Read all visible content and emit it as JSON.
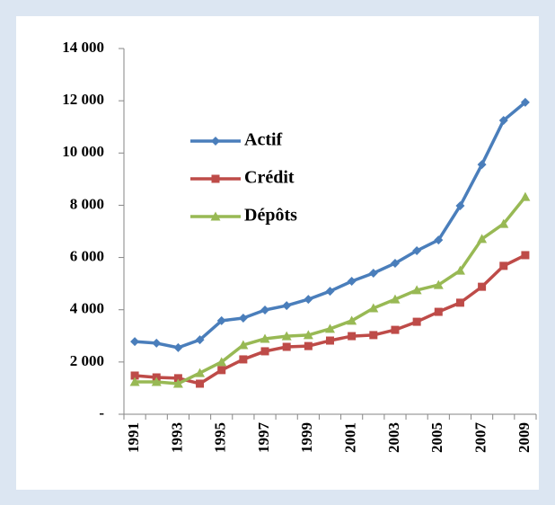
{
  "chart_data": {
    "type": "line",
    "categories": [
      1991,
      null,
      1993,
      null,
      1995,
      null,
      1997,
      null,
      1999,
      null,
      2001,
      null,
      2003,
      null,
      2005,
      null,
      2007,
      null,
      2009
    ],
    "series": [
      {
        "name": "Actif",
        "color": "#4a7ebb",
        "marker": "diamond",
        "values": [
          2780,
          2720,
          2550,
          2850,
          3580,
          3680,
          3990,
          4160,
          4400,
          4710,
          5090,
          5400,
          5780,
          6260,
          6670,
          7980,
          9560,
          11250,
          11940
        ]
      },
      {
        "name": "Crédit",
        "color": "#be4b48",
        "marker": "square",
        "values": [
          1480,
          1410,
          1380,
          1170,
          1690,
          2100,
          2410,
          2580,
          2610,
          2820,
          2990,
          3030,
          3230,
          3540,
          3920,
          4270,
          4880,
          5680,
          6090
        ]
      },
      {
        "name": "Dépôts",
        "color": "#98b954",
        "marker": "triangle",
        "values": [
          1240,
          1240,
          1170,
          1580,
          2000,
          2650,
          2890,
          2990,
          3030,
          3270,
          3580,
          4060,
          4400,
          4750,
          4950,
          5500,
          6710,
          7290,
          8320
        ]
      }
    ],
    "ylim": [
      0,
      14000
    ],
    "yticks": [
      {
        "value": 0,
        "label": "-"
      },
      {
        "value": 2000,
        "label": "2 000"
      },
      {
        "value": 4000,
        "label": "4 000"
      },
      {
        "value": 6000,
        "label": "6 000"
      },
      {
        "value": 8000,
        "label": "8 000"
      },
      {
        "value": 10000,
        "label": "10 000"
      },
      {
        "value": 12000,
        "label": "12 000"
      },
      {
        "value": 14000,
        "label": "14 000"
      }
    ],
    "legend": "upper left"
  }
}
